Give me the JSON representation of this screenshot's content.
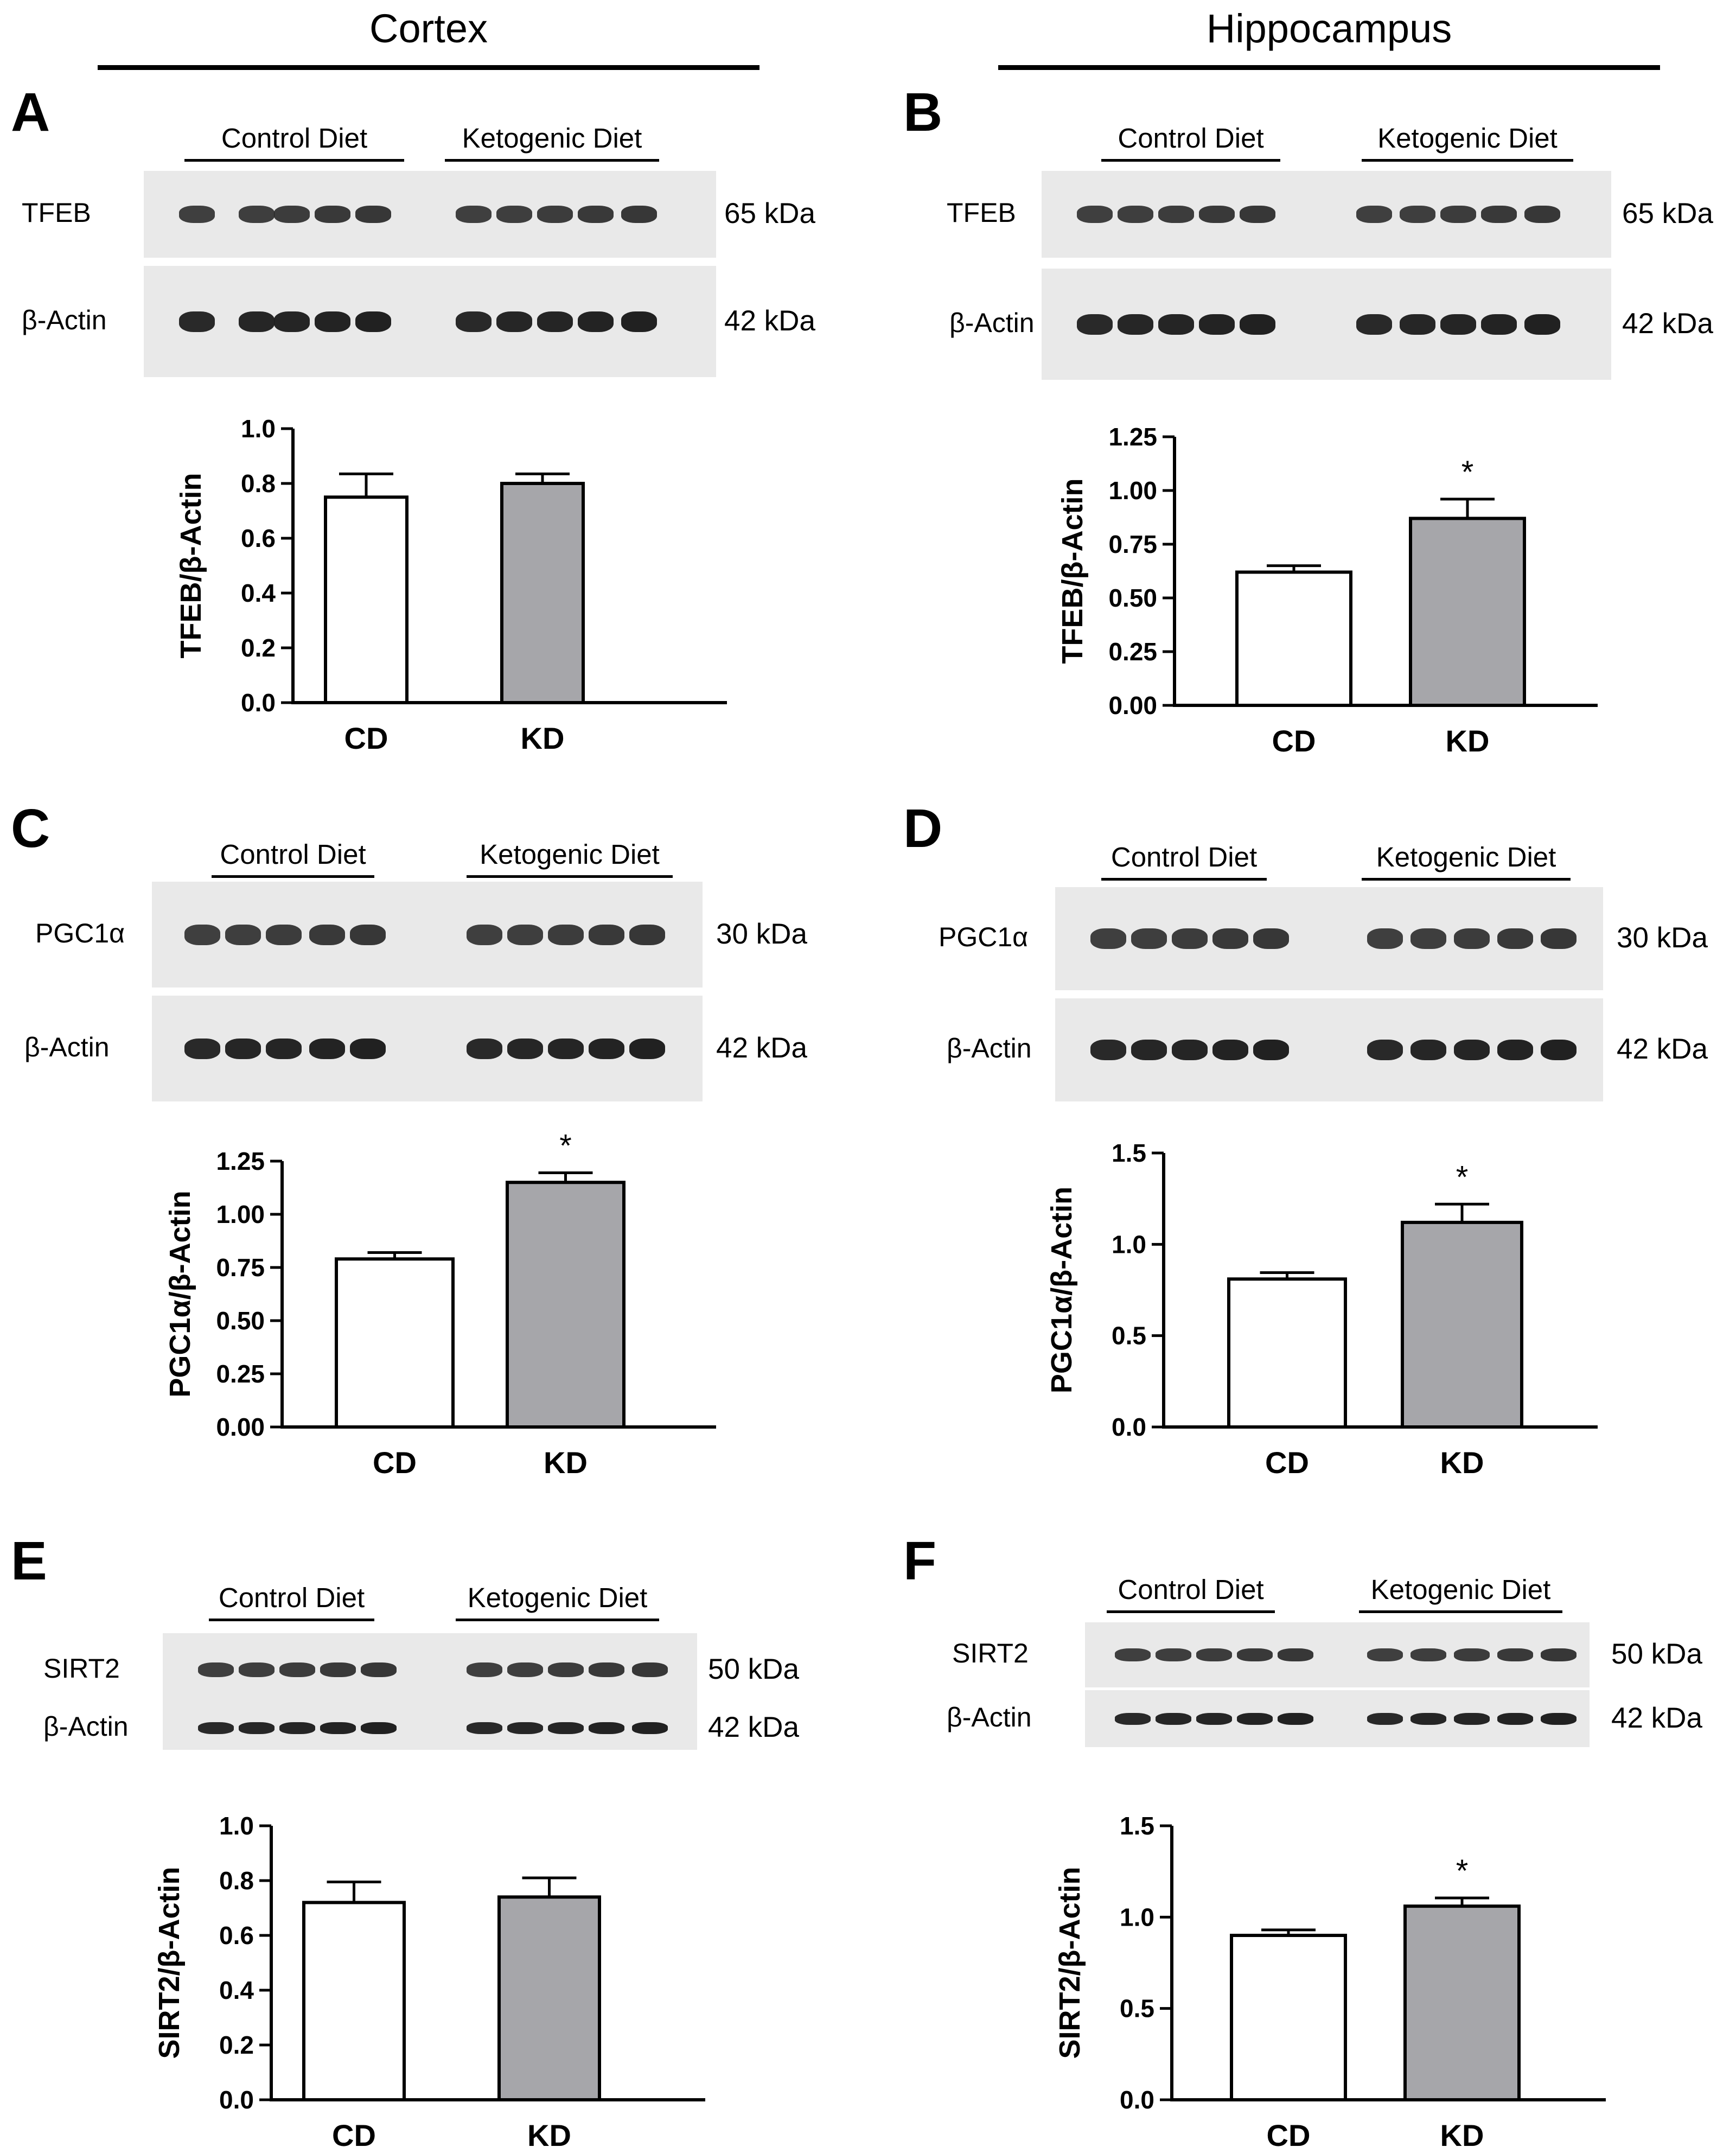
{
  "columns": [
    {
      "title": "Cortex"
    },
    {
      "title": "Hippocampus"
    }
  ],
  "groups": [
    "Control Diet",
    "Ketogenic Diet"
  ],
  "panels": [
    {
      "letter": "A",
      "rows": [
        {
          "label": "TFEB",
          "kda": "65 kDa"
        },
        {
          "label": "β-Actin",
          "kda": "42 kDa"
        }
      ]
    },
    {
      "letter": "B",
      "rows": [
        {
          "label": "TFEB",
          "kda": "65 kDa"
        },
        {
          "label": "β-Actin",
          "kda": "42 kDa"
        }
      ]
    },
    {
      "letter": "C",
      "rows": [
        {
          "label": "PGC1α",
          "kda": "30 kDa"
        },
        {
          "label": "β-Actin",
          "kda": "42 kDa"
        }
      ]
    },
    {
      "letter": "D",
      "rows": [
        {
          "label": "PGC1α",
          "kda": "30 kDa"
        },
        {
          "label": "β-Actin",
          "kda": "42 kDa"
        }
      ]
    },
    {
      "letter": "E",
      "rows": [
        {
          "label": "SIRT2",
          "kda": "50 kDa"
        },
        {
          "label": "β-Actin",
          "kda": "42 kDa"
        }
      ]
    },
    {
      "letter": "F",
      "rows": [
        {
          "label": "SIRT2",
          "kda": "50 kDa"
        },
        {
          "label": "β-Actin",
          "kda": "42 kDa"
        }
      ]
    }
  ],
  "colors": {
    "cd_bar": "#ffffff",
    "kd_bar": "#a6a6aa",
    "ink": "#000000",
    "blot_bg": "#e9e9e9",
    "band": "#1a1a1a"
  },
  "chart_data": [
    {
      "panel": "A",
      "type": "bar",
      "categories": [
        "CD",
        "KD"
      ],
      "values": [
        0.75,
        0.8
      ],
      "errors": [
        0.085,
        0.035
      ],
      "significance": [
        "",
        ""
      ],
      "ylabel": "TFEB/β-Actin",
      "ylim": [
        0,
        1.0
      ],
      "yticks": [
        "0.0",
        "0.2",
        "0.4",
        "0.6",
        "0.8",
        "1.0"
      ]
    },
    {
      "panel": "B",
      "type": "bar",
      "categories": [
        "CD",
        "KD"
      ],
      "values": [
        0.62,
        0.87
      ],
      "errors": [
        0.03,
        0.09
      ],
      "significance": [
        "",
        "*"
      ],
      "ylabel": "TFEB/β-Actin",
      "ylim": [
        0,
        1.25
      ],
      "yticks": [
        "0.00",
        "0.25",
        "0.50",
        "0.75",
        "1.00",
        "1.25"
      ]
    },
    {
      "panel": "C",
      "type": "bar",
      "categories": [
        "CD",
        "KD"
      ],
      "values": [
        0.79,
        1.15
      ],
      "errors": [
        0.03,
        0.045
      ],
      "significance": [
        "",
        "*"
      ],
      "ylabel": "PGC1α/β-Actin",
      "ylim": [
        0,
        1.25
      ],
      "yticks": [
        "0.00",
        "0.25",
        "0.50",
        "0.75",
        "1.00",
        "1.25"
      ]
    },
    {
      "panel": "D",
      "type": "bar",
      "categories": [
        "CD",
        "KD"
      ],
      "values": [
        0.81,
        1.12
      ],
      "errors": [
        0.035,
        0.1
      ],
      "significance": [
        "",
        "*"
      ],
      "ylabel": "PGC1α/β-Actin",
      "ylim": [
        0,
        1.5
      ],
      "yticks": [
        "0.0",
        "0.5",
        "1.0",
        "1.5"
      ]
    },
    {
      "panel": "E",
      "type": "bar",
      "categories": [
        "CD",
        "KD"
      ],
      "values": [
        0.72,
        0.74
      ],
      "errors": [
        0.075,
        0.07
      ],
      "significance": [
        "",
        ""
      ],
      "ylabel": "SIRT2/β-Actin",
      "ylim": [
        0,
        1.0
      ],
      "yticks": [
        "0.0",
        "0.2",
        "0.4",
        "0.6",
        "0.8",
        "1.0"
      ]
    },
    {
      "panel": "F",
      "type": "bar",
      "categories": [
        "CD",
        "KD"
      ],
      "values": [
        0.9,
        1.06
      ],
      "errors": [
        0.03,
        0.045
      ],
      "significance": [
        "",
        "*"
      ],
      "ylabel": "SIRT2/β-Actin",
      "ylim": [
        0,
        1.5
      ],
      "yticks": [
        "0.0",
        "0.5",
        "1.0",
        "1.5"
      ]
    }
  ]
}
